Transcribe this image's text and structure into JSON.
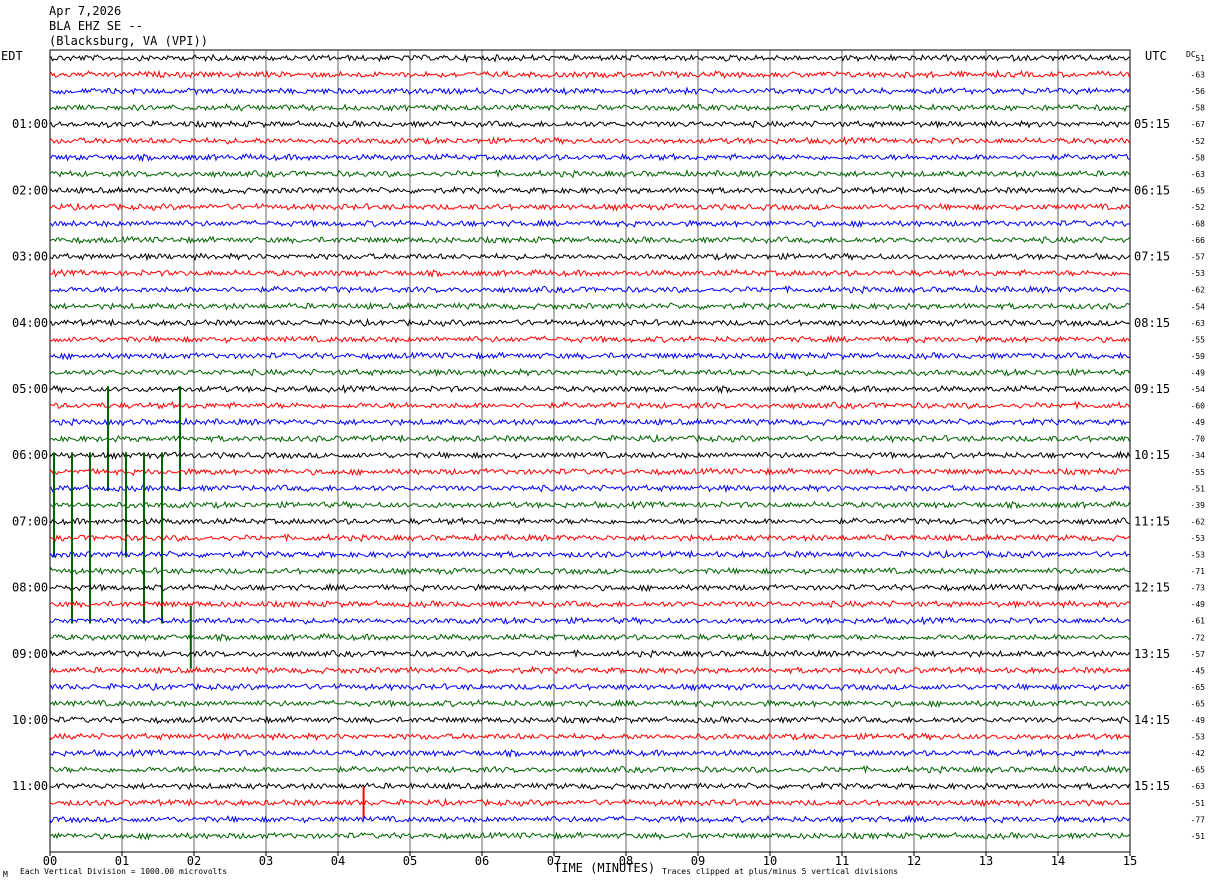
{
  "header": {
    "date": "Apr 7,2026",
    "station": "BLA EHZ SE --",
    "location": "(Blacksburg, VA (VPI))"
  },
  "left_axis_label": "EDT",
  "right_axis_label": "UTC",
  "dc_label": "DC",
  "footer": {
    "scale_note": "Each Vertical Division = 1000.00 microvolts",
    "xlabel": "TIME (MINUTES)",
    "clip_note": "Traces clipped at plus/minus 5 vertical divisions",
    "corner_mark": "M"
  },
  "colors": {
    "cycle": [
      "#000000",
      "#ff0000",
      "#0000ff",
      "#006400"
    ],
    "grid": "#000000",
    "background": "#ffffff"
  },
  "chart_data": {
    "type": "line",
    "title": "BLA EHZ SE -- (Blacksburg, VA (VPI)) Apr 7,2026",
    "xlabel": "TIME (MINUTES)",
    "xlim": [
      0,
      15
    ],
    "x_ticks": [
      "00",
      "01",
      "02",
      "03",
      "04",
      "05",
      "06",
      "07",
      "08",
      "09",
      "10",
      "11",
      "12",
      "13",
      "14",
      "15"
    ],
    "grid": true,
    "trace_count": 48,
    "minutes_per_trace": 15,
    "left_hour_labels": [
      "01:00",
      "02:00",
      "03:00",
      "04:00",
      "05:00",
      "06:00",
      "07:00",
      "08:00",
      "09:00",
      "10:00",
      "11:00"
    ],
    "right_hour_labels": [
      "05:15",
      "06:15",
      "07:15",
      "08:15",
      "09:15",
      "10:15",
      "11:15",
      "12:15",
      "13:15",
      "14:15",
      "15:15"
    ],
    "dc_offsets": [
      51,
      -63,
      -56,
      -58,
      -67,
      -52,
      -58,
      -63,
      -65,
      -52,
      -68,
      -66,
      -57,
      -53,
      -62,
      -54,
      -63,
      -55,
      -59,
      -49,
      -54,
      -60,
      -49,
      -70,
      -34,
      -55,
      -51,
      -39,
      -62,
      -53,
      -53,
      -71,
      -73,
      -49,
      -61,
      -72,
      -57,
      -45,
      -65,
      -65,
      -49,
      -53,
      -42,
      -65,
      -63,
      -51,
      -77,
      -51
    ],
    "events": [
      {
        "trace": 23,
        "minute": 0.75,
        "amplitude_divisions": 5
      },
      {
        "trace": 23,
        "minute": 1.75,
        "amplitude_divisions": 5
      },
      {
        "trace": 27,
        "minute": 0.0,
        "amplitude_divisions": 5
      },
      {
        "trace": 27,
        "minute": 0.25,
        "amplitude_divisions": 5
      },
      {
        "trace": 27,
        "minute": 0.5,
        "amplitude_divisions": 5
      },
      {
        "trace": 27,
        "minute": 1.0,
        "amplitude_divisions": 5
      },
      {
        "trace": 27,
        "minute": 1.25,
        "amplitude_divisions": 5
      },
      {
        "trace": 27,
        "minute": 1.5,
        "amplitude_divisions": 5
      },
      {
        "trace": 31,
        "minute": 0.25,
        "amplitude_divisions": 5
      },
      {
        "trace": 31,
        "minute": 0.5,
        "amplitude_divisions": 5
      },
      {
        "trace": 31,
        "minute": 1.25,
        "amplitude_divisions": 5
      },
      {
        "trace": 31,
        "minute": 1.5,
        "amplitude_divisions": 5
      },
      {
        "trace": 35,
        "minute": 1.9,
        "amplitude_divisions": 3
      },
      {
        "trace": 45,
        "minute": 4.3,
        "amplitude_divisions": 1.5
      }
    ]
  }
}
